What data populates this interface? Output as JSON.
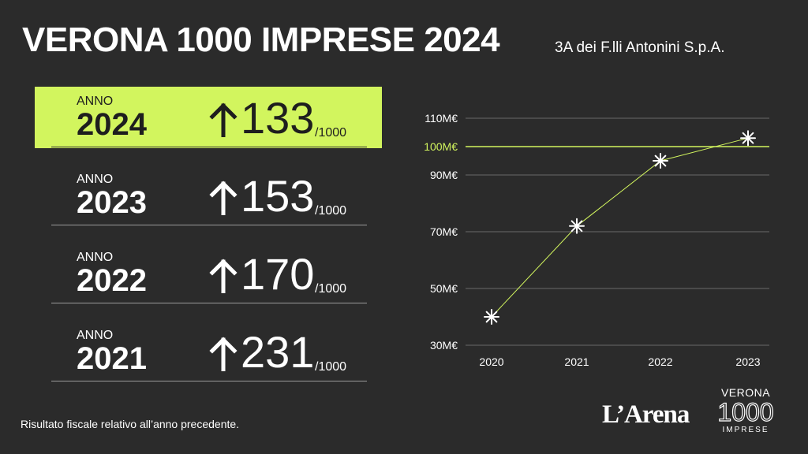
{
  "header": {
    "title": "VERONA 1000 IMPRESE 2024",
    "company": "3A dei F.lli Antonini S.p.A."
  },
  "rankings": [
    {
      "label": "ANNO",
      "year": "2024",
      "rank": "133",
      "suffix": "/1000",
      "highlight": true
    },
    {
      "label": "ANNO",
      "year": "2023",
      "rank": "153",
      "suffix": "/1000",
      "highlight": false
    },
    {
      "label": "ANNO",
      "year": "2022",
      "rank": "170",
      "suffix": "/1000",
      "highlight": false
    },
    {
      "label": "ANNO",
      "year": "2021",
      "rank": "231",
      "suffix": "/1000",
      "highlight": false
    }
  ],
  "footnote": "Risultato fiscale relativo all’anno precedente.",
  "logos": {
    "arena": "L’Arena",
    "verona_line": "VERONA",
    "number_line": "1000",
    "imprese_line": "IMPRESE"
  },
  "colors": {
    "background": "#2b2b2b",
    "accent": "#d2f55e",
    "text": "#ffffff",
    "dark_text": "#1e1e1e"
  },
  "chart_data": {
    "type": "line",
    "categories": [
      "2020",
      "2021",
      "2022",
      "2023"
    ],
    "series": [
      {
        "values": [
          40,
          72,
          95,
          103
        ]
      }
    ],
    "y_ticks": [
      {
        "value": 30,
        "label": "30M€"
      },
      {
        "value": 50,
        "label": "50M€"
      },
      {
        "value": 70,
        "label": "70M€"
      },
      {
        "value": 90,
        "label": "90M€"
      },
      {
        "value": 100,
        "label": "100M€",
        "highlight": true
      },
      {
        "value": 110,
        "label": "110M€"
      }
    ],
    "ylim": [
      30,
      110
    ],
    "grid": true,
    "marker": "asterisk-icon"
  }
}
